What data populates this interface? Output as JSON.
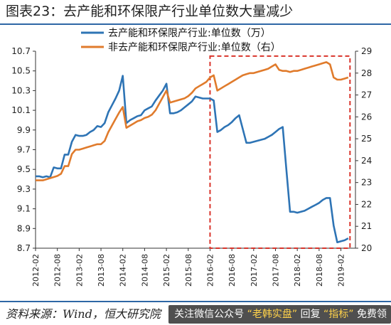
{
  "page": {
    "title": "图表23：去产能和环保限产行业单位数大量减少",
    "source": "资料来源：Wind，恒大研究院",
    "banner": {
      "prefix": "关注微信公众号",
      "q1": "“老韩实盘”",
      "middle": "回复",
      "q2": "“指标”",
      "suffix": "免费领"
    }
  },
  "chart_data": {
    "type": "line",
    "title": "",
    "xlabel": "",
    "ylabel": "",
    "xlim": [
      0,
      88
    ],
    "ylim": [
      8.7,
      10.7
    ],
    "y2lim": [
      20,
      29
    ],
    "y_ticks": [
      8.7,
      8.9,
      9.1,
      9.3,
      9.5,
      9.7,
      9.9,
      10.1,
      10.3,
      10.5,
      10.7
    ],
    "y2_ticks": [
      20,
      21,
      22,
      23,
      24,
      25,
      26,
      27,
      28,
      29
    ],
    "x_tick_labels": [
      "2012-02",
      "2012-08",
      "2013-02",
      "2013-08",
      "2014-02",
      "2014-08",
      "2015-02",
      "2015-08",
      "2016-02",
      "2016-08",
      "2017-02",
      "2017-08",
      "2018-02",
      "2018-08",
      "2019-02"
    ],
    "x_tick_positions": [
      0,
      6,
      12,
      18,
      24,
      30,
      36,
      42,
      48,
      54,
      60,
      66,
      72,
      78,
      84
    ],
    "legend_position": "top",
    "annotation_box": {
      "x0": 48,
      "x1": 86.5,
      "y0": 8.7,
      "y1": 10.65
    },
    "series": [
      {
        "name": "去产能和环保限产行业:单位数（万）",
        "axis": "left",
        "color": "#2e74b5",
        "points": [
          [
            0,
            9.43
          ],
          [
            1,
            9.43
          ],
          [
            2,
            9.42
          ],
          [
            3,
            9.43
          ],
          [
            4,
            9.42
          ],
          [
            5,
            9.52
          ],
          [
            6,
            9.51
          ],
          [
            7,
            9.51
          ],
          [
            8,
            9.65
          ],
          [
            9,
            9.65
          ],
          [
            10,
            9.78
          ],
          [
            11,
            9.85
          ],
          [
            12,
            9.84
          ],
          [
            13,
            9.84
          ],
          [
            14,
            9.85
          ],
          [
            15,
            9.88
          ],
          [
            16,
            9.9
          ],
          [
            17,
            9.94
          ],
          [
            18,
            9.93
          ],
          [
            19,
            9.97
          ],
          [
            20,
            10.08
          ],
          [
            21,
            10.15
          ],
          [
            22,
            10.22
          ],
          [
            23,
            10.3
          ],
          [
            24,
            10.45
          ],
          [
            25,
            9.97
          ],
          [
            26,
            10.0
          ],
          [
            27,
            10.02
          ],
          [
            28,
            10.04
          ],
          [
            29,
            10.05
          ],
          [
            30,
            10.1
          ],
          [
            31,
            10.12
          ],
          [
            32,
            10.14
          ],
          [
            33,
            10.2
          ],
          [
            34,
            10.25
          ],
          [
            35,
            10.3
          ],
          [
            36,
            10.37
          ],
          [
            37,
            10.07
          ],
          [
            38,
            10.07
          ],
          [
            39,
            10.08
          ],
          [
            40,
            10.1
          ],
          [
            41,
            10.13
          ],
          [
            42,
            10.16
          ],
          [
            43,
            10.19
          ],
          [
            44,
            10.24
          ],
          [
            45,
            10.23
          ],
          [
            46,
            10.22
          ],
          [
            47,
            10.22
          ],
          [
            48,
            10.22
          ],
          [
            49,
            10.2
          ],
          [
            50,
            9.88
          ],
          [
            51,
            9.9
          ],
          [
            52,
            9.93
          ],
          [
            53,
            9.95
          ],
          [
            54,
            9.98
          ],
          [
            55,
            10.02
          ],
          [
            56,
            10.05
          ],
          [
            57,
            9.91
          ],
          [
            58,
            9.77
          ],
          [
            59,
            9.77
          ],
          [
            60,
            9.78
          ],
          [
            61,
            9.79
          ],
          [
            62,
            9.8
          ],
          [
            63,
            9.81
          ],
          [
            64,
            9.83
          ],
          [
            65,
            9.85
          ],
          [
            66,
            9.88
          ],
          [
            67,
            9.91
          ],
          [
            68,
            9.93
          ],
          [
            69,
            9.5
          ],
          [
            70,
            9.07
          ],
          [
            71,
            9.07
          ],
          [
            72,
            9.06
          ],
          [
            73,
            9.07
          ],
          [
            74,
            9.08
          ],
          [
            75,
            9.1
          ],
          [
            76,
            9.12
          ],
          [
            77,
            9.14
          ],
          [
            78,
            9.16
          ],
          [
            79,
            9.19
          ],
          [
            80,
            9.21
          ],
          [
            81,
            9.21
          ],
          [
            82,
            8.93
          ],
          [
            83,
            8.76
          ],
          [
            84,
            8.77
          ],
          [
            85,
            8.78
          ],
          [
            86,
            8.8
          ]
        ]
      },
      {
        "name": "非去产能和环保限产行业:单位数（右）",
        "axis": "right",
        "color": "#e07b2c",
        "points": [
          [
            0,
            23.1
          ],
          [
            1,
            23.1
          ],
          [
            2,
            23.1
          ],
          [
            3,
            23.15
          ],
          [
            4,
            23.2
          ],
          [
            5,
            23.25
          ],
          [
            6,
            23.3
          ],
          [
            7,
            23.4
          ],
          [
            8,
            23.75
          ],
          [
            9,
            23.75
          ],
          [
            10,
            24.3
          ],
          [
            11,
            24.5
          ],
          [
            12,
            24.5
          ],
          [
            13,
            24.55
          ],
          [
            14,
            24.6
          ],
          [
            15,
            24.65
          ],
          [
            16,
            24.7
          ],
          [
            17,
            24.75
          ],
          [
            18,
            24.75
          ],
          [
            19,
            24.9
          ],
          [
            20,
            25.3
          ],
          [
            21,
            25.6
          ],
          [
            22,
            25.9
          ],
          [
            23,
            26.2
          ],
          [
            24,
            26.45
          ],
          [
            25,
            25.5
          ],
          [
            26,
            25.6
          ],
          [
            27,
            25.7
          ],
          [
            28,
            25.8
          ],
          [
            29,
            25.85
          ],
          [
            30,
            25.95
          ],
          [
            31,
            26.0
          ],
          [
            32,
            26.1
          ],
          [
            33,
            26.3
          ],
          [
            34,
            26.6
          ],
          [
            35,
            26.9
          ],
          [
            36,
            27.2
          ],
          [
            37,
            26.65
          ],
          [
            38,
            26.7
          ],
          [
            39,
            26.75
          ],
          [
            40,
            26.8
          ],
          [
            41,
            26.85
          ],
          [
            42,
            26.95
          ],
          [
            43,
            27.1
          ],
          [
            44,
            27.3
          ],
          [
            45,
            27.4
          ],
          [
            46,
            27.5
          ],
          [
            47,
            27.6
          ],
          [
            48,
            27.8
          ],
          [
            49,
            27.9
          ],
          [
            50,
            27.2
          ],
          [
            51,
            27.3
          ],
          [
            52,
            27.4
          ],
          [
            53,
            27.5
          ],
          [
            54,
            27.6
          ],
          [
            55,
            27.7
          ],
          [
            56,
            27.8
          ],
          [
            57,
            27.9
          ],
          [
            58,
            27.95
          ],
          [
            59,
            28.0
          ],
          [
            60,
            28.0
          ],
          [
            61,
            28.05
          ],
          [
            62,
            28.1
          ],
          [
            63,
            28.15
          ],
          [
            64,
            28.2
          ],
          [
            65,
            28.3
          ],
          [
            66,
            28.4
          ],
          [
            67,
            28.15
          ],
          [
            68,
            28.1
          ],
          [
            69,
            28.1
          ],
          [
            70,
            28.05
          ],
          [
            71,
            28.1
          ],
          [
            72,
            28.1
          ],
          [
            73,
            28.15
          ],
          [
            74,
            28.2
          ],
          [
            75,
            28.25
          ],
          [
            76,
            28.3
          ],
          [
            77,
            28.35
          ],
          [
            78,
            28.4
          ],
          [
            79,
            28.45
          ],
          [
            80,
            28.5
          ],
          [
            81,
            28.4
          ],
          [
            82,
            27.8
          ],
          [
            83,
            27.7
          ],
          [
            84,
            27.7
          ],
          [
            85,
            27.75
          ],
          [
            86,
            27.8
          ]
        ]
      }
    ]
  }
}
